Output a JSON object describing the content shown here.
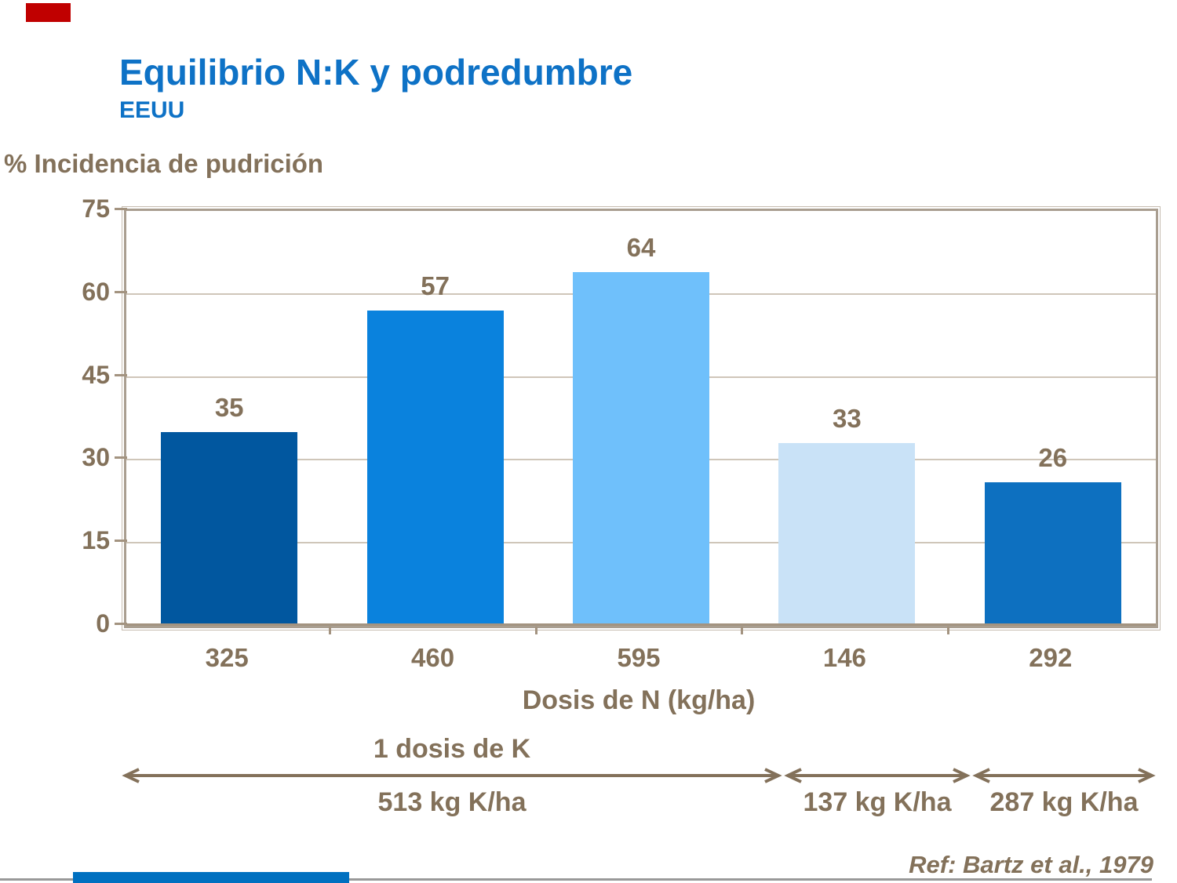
{
  "slide": {
    "title": "Equilibrio N:K y podredumbre",
    "subtitle": "EEUU",
    "reference": "Ref: Bartz et al., 1979"
  },
  "chart_data": {
    "type": "bar",
    "title": "Equilibrio N:K y podredumbre (EEUU)",
    "ylabel": "% Incidencia de pudrición",
    "xlabel": "Dosis de N (kg/ha)",
    "categories": [
      "325",
      "460",
      "595",
      "146",
      "292"
    ],
    "values": [
      35,
      57,
      64,
      33,
      26
    ],
    "bar_colors": [
      "#01579f",
      "#0a82dd",
      "#6fc0fb",
      "#c9e2f7",
      "#0d70c0"
    ],
    "ylim": [
      0,
      75
    ],
    "yticks": [
      0,
      15,
      30,
      45,
      60,
      75
    ],
    "gridlines_at": [
      15,
      30,
      45,
      60
    ],
    "grid": true,
    "legend_position": "none",
    "annotations": {
      "k_dose_title": "1 dosis de K",
      "groups": [
        {
          "label": "513 kg K/ha",
          "categories": [
            "325",
            "460",
            "595"
          ]
        },
        {
          "label": "137 kg K/ha",
          "categories": [
            "146"
          ]
        },
        {
          "label": "287 kg K/ha",
          "categories": [
            "292"
          ]
        }
      ]
    }
  },
  "colors": {
    "title_blue": "#0e72c6",
    "text_brown": "#83715a",
    "frame": "#a99e90",
    "frame_outer": "#c6bcb0",
    "gridline": "#cfc6b9",
    "axis": "#a39380",
    "footer_line": "#999999",
    "red_block": "#c00000",
    "footer_bar_blue": "#0070c0"
  }
}
